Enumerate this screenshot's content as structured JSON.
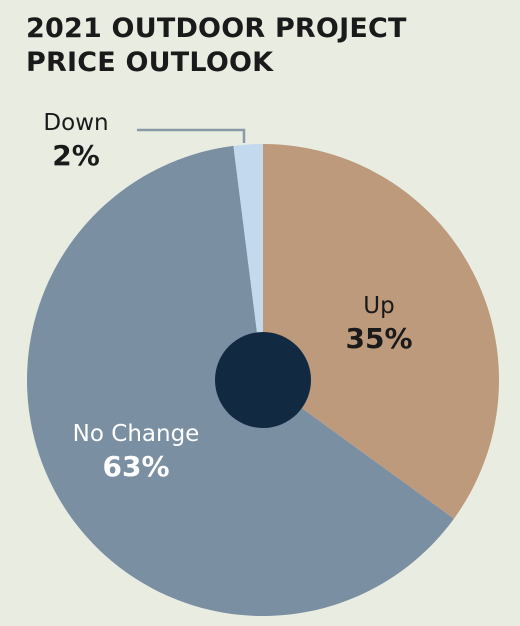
{
  "title_lines": [
    "2021 OUTDOOR PROJECT",
    "PRICE OUTLOOK"
  ],
  "colors": {
    "background": "#e9ede1",
    "up": "#bd9a7c",
    "no_change": "#7b8fa3",
    "down": "#c3d9ee",
    "center": "#112a42",
    "leader": "#8a9aa8"
  },
  "chart_data": {
    "type": "pie",
    "title": "2021 OUTDOOR PROJECT PRICE OUTLOOK",
    "slices": [
      {
        "label": "Up",
        "value": 35,
        "display": "35%"
      },
      {
        "label": "No Change",
        "value": 63,
        "display": "63%"
      },
      {
        "label": "Down",
        "value": 2,
        "display": "2%"
      }
    ]
  }
}
